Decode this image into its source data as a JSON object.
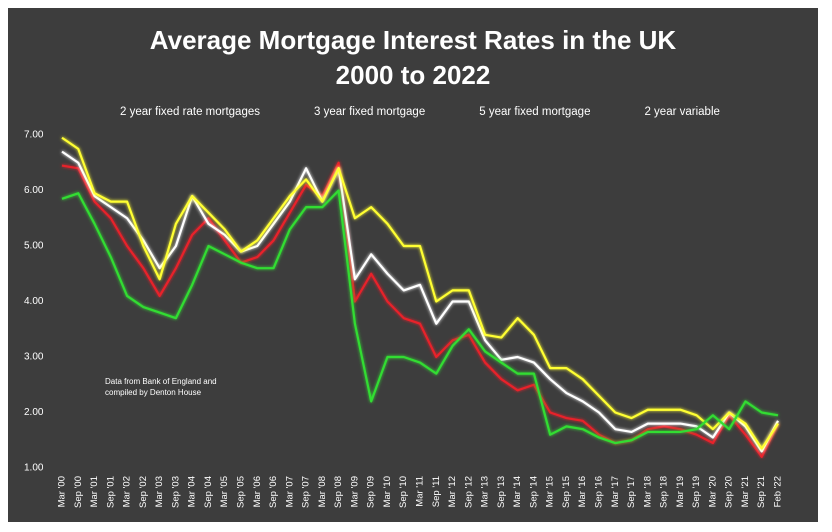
{
  "chart_data": {
    "type": "line",
    "title": [
      "Average Mortgage Interest Rates in the UK",
      "2000 to 2022"
    ],
    "annotations": [
      "Data from Bank of England and",
      "compiled by Denton House"
    ],
    "categories": [
      "Mar '00",
      "Sep '00",
      "Mar '01",
      "Sep '01",
      "Mar '02",
      "Sep '02",
      "Mar '03",
      "Sep '03",
      "Mar '04",
      "Sep '04",
      "Mar '05",
      "Sep '05",
      "Mar '06",
      "Sep '06",
      "Mar '07",
      "Sep '07",
      "Mar '08",
      "Sep '08",
      "Mar '09",
      "Sep '09",
      "Mar '10",
      "Sep '10",
      "Mar '11",
      "Sep '11",
      "Mar '12",
      "Sep '12",
      "Mar '13",
      "Sep '13",
      "Mar '14",
      "Sep '14",
      "Mar '15",
      "Sep '15",
      "Mar '16",
      "Sep '16",
      "Mar '17",
      "Sep '17",
      "Mar '18",
      "Sep '18",
      "Mar '19",
      "Sep '19",
      "Mar '20",
      "Sep '20",
      "Mar '21",
      "Sep '21",
      "Feb '22"
    ],
    "series": [
      {
        "name": "2 year fixed rate mortgages",
        "color": "#e8202a",
        "values": [
          6.45,
          6.4,
          5.8,
          5.5,
          5.0,
          4.6,
          4.1,
          4.6,
          5.2,
          5.5,
          5.1,
          4.7,
          4.8,
          5.1,
          5.6,
          6.1,
          5.9,
          6.5,
          4.0,
          4.5,
          4.0,
          3.7,
          3.6,
          3.0,
          3.3,
          3.4,
          2.9,
          2.6,
          2.4,
          2.5,
          2.0,
          1.9,
          1.85,
          1.6,
          1.45,
          1.5,
          1.7,
          1.75,
          1.7,
          1.6,
          1.45,
          1.95,
          1.6,
          1.2,
          1.8
        ]
      },
      {
        "name": "3 year fixed mortgage",
        "color": "#ffffff",
        "values": [
          6.7,
          6.5,
          5.9,
          5.7,
          5.5,
          5.1,
          4.6,
          5.0,
          5.9,
          5.4,
          5.2,
          4.9,
          5.0,
          5.4,
          5.8,
          6.4,
          5.8,
          6.4,
          4.4,
          4.85,
          4.5,
          4.2,
          4.3,
          3.6,
          4.0,
          4.0,
          3.3,
          2.95,
          3.0,
          2.9,
          2.6,
          2.35,
          2.2,
          2.0,
          1.7,
          1.65,
          1.8,
          1.8,
          1.8,
          1.75,
          1.55,
          2.0,
          1.75,
          1.3,
          1.85
        ]
      },
      {
        "name": "5 year fixed mortgage",
        "color": "#ffff33",
        "values": [
          6.95,
          6.75,
          5.95,
          5.8,
          5.8,
          5.0,
          4.4,
          5.4,
          5.9,
          5.6,
          5.3,
          4.9,
          5.1,
          5.5,
          5.9,
          6.2,
          5.8,
          6.4,
          5.5,
          5.7,
          5.4,
          5.0,
          5.0,
          4.0,
          4.2,
          4.2,
          3.4,
          3.35,
          3.7,
          3.4,
          2.8,
          2.8,
          2.6,
          2.3,
          2.0,
          1.9,
          2.05,
          2.05,
          2.05,
          1.95,
          1.7,
          2.0,
          1.8,
          1.35,
          1.8
        ]
      },
      {
        "name": "2 year variable",
        "color": "#33dd33",
        "values": [
          5.85,
          5.95,
          5.4,
          4.8,
          4.1,
          3.9,
          3.8,
          3.7,
          4.3,
          5.0,
          4.85,
          4.7,
          4.6,
          4.6,
          5.3,
          5.7,
          5.7,
          6.0,
          3.6,
          2.2,
          3.0,
          3.0,
          2.9,
          2.7,
          3.2,
          3.5,
          3.1,
          2.9,
          2.7,
          2.7,
          1.6,
          1.75,
          1.7,
          1.55,
          1.45,
          1.5,
          1.65,
          1.65,
          1.65,
          1.7,
          1.95,
          1.7,
          2.2,
          2.0,
          1.95
        ]
      }
    ],
    "ylim": [
      1,
      7
    ],
    "yticks": [
      {
        "value": 1,
        "label": "1.00"
      },
      {
        "value": 2,
        "label": "2.00"
      },
      {
        "value": 3,
        "label": "3.00"
      },
      {
        "value": 4,
        "label": "4.00"
      },
      {
        "value": 5,
        "label": "5.00"
      },
      {
        "value": 6,
        "label": "6.00"
      },
      {
        "value": 7,
        "label": "7.00"
      }
    ],
    "legend": "top"
  }
}
